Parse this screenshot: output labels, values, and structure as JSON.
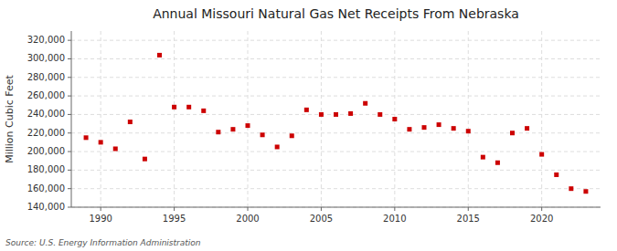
{
  "chart_data": {
    "type": "scatter",
    "title": "Annual Missouri Natural Gas Net Receipts From Nebraska",
    "ylabel": "Million Cubic Feet",
    "source": "Source: U.S. Energy Information Administration",
    "color": "#cc0000",
    "marker": "square",
    "grid": true,
    "x": [
      1989,
      1990,
      1991,
      1992,
      1993,
      1994,
      1995,
      1996,
      1997,
      1998,
      1999,
      2000,
      2001,
      2002,
      2003,
      2004,
      2005,
      2006,
      2007,
      2008,
      2009,
      2010,
      2011,
      2012,
      2013,
      2014,
      2015,
      2016,
      2017,
      2018,
      2019,
      2020,
      2021,
      2022,
      2023
    ],
    "values": [
      215000,
      210000,
      203000,
      232000,
      192000,
      304000,
      248000,
      248000,
      244000,
      221000,
      224000,
      228000,
      218000,
      205000,
      217000,
      245000,
      240000,
      240000,
      241000,
      252000,
      240000,
      235000,
      224000,
      226000,
      229000,
      225000,
      222000,
      194000,
      188000,
      220000,
      225000,
      197000,
      175000,
      160000,
      157000
    ],
    "xlim": [
      1988,
      2024
    ],
    "ylim": [
      140000,
      330000
    ],
    "xticks": [
      1990,
      1995,
      2000,
      2005,
      2010,
      2015,
      2020
    ],
    "yticks": [
      {
        "value": 140000,
        "label": "140,000"
      },
      {
        "value": 160000,
        "label": "160,000"
      },
      {
        "value": 180000,
        "label": "180,000"
      },
      {
        "value": 200000,
        "label": "200,000"
      },
      {
        "value": 220000,
        "label": "220,000"
      },
      {
        "value": 240000,
        "label": "240,000"
      },
      {
        "value": 260000,
        "label": "260,000"
      },
      {
        "value": 280000,
        "label": "280,000"
      },
      {
        "value": 300000,
        "label": "300,000"
      },
      {
        "value": 320000,
        "label": "320,000"
      }
    ]
  }
}
